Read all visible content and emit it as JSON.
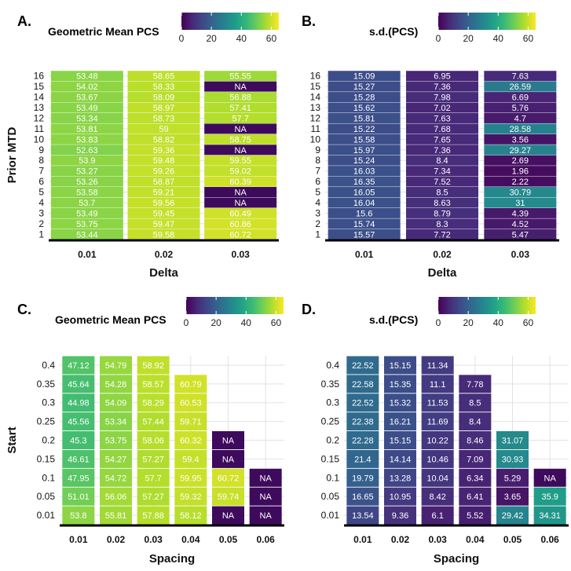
{
  "colorscale": {
    "min": 0,
    "max": 65,
    "stops": [
      "#440154",
      "#482878",
      "#3e4a89",
      "#31688e",
      "#26828e",
      "#1f9e89",
      "#35b779",
      "#6dcd59",
      "#b4de2c",
      "#fde725"
    ],
    "na_color": "#3d0a5c",
    "ticks": [
      "0",
      "20",
      "40",
      "60"
    ]
  },
  "chart_data": [
    {
      "panel": "A.",
      "type": "heatmap",
      "legend_title": "Geometric Mean PCS",
      "xlabel": "Delta",
      "ylabel": "Prior MTD",
      "x_categories": [
        "0.01",
        "0.02",
        "0.03"
      ],
      "y_categories": [
        "1",
        "2",
        "3",
        "4",
        "5",
        "6",
        "7",
        "8",
        "9",
        "10",
        "11",
        "12",
        "13",
        "14",
        "15",
        "16"
      ],
      "labels": [
        [
          "53.44",
          "59.58",
          "60.72"
        ],
        [
          "53.75",
          "59.47",
          "60.86"
        ],
        [
          "53.49",
          "59.45",
          "60.49"
        ],
        [
          "53.7",
          "59.56",
          "NA"
        ],
        [
          "53.58",
          "59.21",
          "NA"
        ],
        [
          "53.26",
          "58.87",
          "60.39"
        ],
        [
          "53.27",
          "59.26",
          "59.02"
        ],
        [
          "53.9",
          "59.48",
          "59.55"
        ],
        [
          "52.63",
          "59.36",
          "NA"
        ],
        [
          "53.83",
          "58.82",
          "58.75"
        ],
        [
          "53.81",
          "59",
          "NA"
        ],
        [
          "53.34",
          "58.73",
          "57.7"
        ],
        [
          "53.49",
          "58.97",
          "57.41"
        ],
        [
          "53.67",
          "58.09",
          "56.88"
        ],
        [
          "54.02",
          "58.33",
          "NA"
        ],
        [
          "53.48",
          "58.65",
          "55.55"
        ]
      ]
    },
    {
      "panel": "B.",
      "type": "heatmap",
      "legend_title": "s.d.(PCS)",
      "xlabel": "Delta",
      "ylabel": "",
      "x_categories": [
        "0.01",
        "0.02",
        "0.03"
      ],
      "y_categories": [
        "1",
        "2",
        "3",
        "4",
        "5",
        "6",
        "7",
        "8",
        "9",
        "10",
        "11",
        "12",
        "13",
        "14",
        "15",
        "16"
      ],
      "labels": [
        [
          "15.57",
          "7.72",
          "5.47"
        ],
        [
          "15.74",
          "8.3",
          "4.52"
        ],
        [
          "15.6",
          "8.79",
          "4.39"
        ],
        [
          "16.04",
          "8.63",
          "31"
        ],
        [
          "16.05",
          "8.5",
          "30.79"
        ],
        [
          "16.35",
          "7.52",
          "2.22"
        ],
        [
          "16.03",
          "7.34",
          "1.96"
        ],
        [
          "15.24",
          "8.4",
          "2.69"
        ],
        [
          "15.97",
          "7.36",
          "29.27"
        ],
        [
          "15.58",
          "7.65",
          "3.56"
        ],
        [
          "15.22",
          "7.68",
          "28.58"
        ],
        [
          "15.81",
          "7.63",
          "4.7"
        ],
        [
          "15.62",
          "7.02",
          "5.76"
        ],
        [
          "15.28",
          "7.98",
          "6.69"
        ],
        [
          "15.27",
          "7.36",
          "26.59"
        ],
        [
          "15.09",
          "6.95",
          "7.63"
        ]
      ]
    },
    {
      "panel": "C.",
      "type": "heatmap",
      "legend_title": "Geometric Mean PCS",
      "xlabel": "Spacing",
      "ylabel": "Start",
      "x_categories": [
        "0.01",
        "0.02",
        "0.03",
        "0.04",
        "0.05",
        "0.06"
      ],
      "y_categories": [
        "0.01",
        "0.05",
        "0.1",
        "0.15",
        "0.2",
        "0.25",
        "0.3",
        "0.35",
        "0.4"
      ],
      "labels": [
        [
          "53.8",
          "55.81",
          "57.88",
          "58.12",
          "NA",
          "NA"
        ],
        [
          "51.01",
          "56.06",
          "57.27",
          "59.32",
          "59.74",
          "NA"
        ],
        [
          "47.95",
          "54.72",
          "57.7",
          "59.95",
          "60.72",
          "NA"
        ],
        [
          "46.61",
          "54.27",
          "57.27",
          "59.4",
          "NA",
          ""
        ],
        [
          "45.3",
          "53.75",
          "58.06",
          "60.32",
          "NA",
          ""
        ],
        [
          "45.56",
          "53.34",
          "57.44",
          "59.71",
          "",
          ""
        ],
        [
          "44.98",
          "54.09",
          "58.29",
          "60.53",
          "",
          ""
        ],
        [
          "45.64",
          "54.28",
          "58.57",
          "60.79",
          "",
          ""
        ],
        [
          "47.12",
          "54.79",
          "58.92",
          "",
          "",
          ""
        ]
      ]
    },
    {
      "panel": "D.",
      "type": "heatmap",
      "legend_title": "s.d.(PCS)",
      "xlabel": "Spacing",
      "ylabel": "",
      "x_categories": [
        "0.01",
        "0.02",
        "0.03",
        "0.04",
        "0.05",
        "0.06"
      ],
      "y_categories": [
        "0.01",
        "0.05",
        "0.1",
        "0.15",
        "0.2",
        "0.25",
        "0.3",
        "0.35",
        "0.4"
      ],
      "labels": [
        [
          "13.54",
          "9.36",
          "6.1",
          "5.52",
          "29.42",
          "34.31"
        ],
        [
          "16.65",
          "10.95",
          "8.42",
          "6.41",
          "3.65",
          "35.9"
        ],
        [
          "19.79",
          "13.28",
          "10.04",
          "6.34",
          "5.29",
          "NA"
        ],
        [
          "21.4",
          "14.14",
          "10.46",
          "7.09",
          "30.93",
          ""
        ],
        [
          "22.28",
          "15.15",
          "10.22",
          "8.46",
          "31.07",
          ""
        ],
        [
          "22.38",
          "16.21",
          "11.69",
          "8.4",
          "",
          ""
        ],
        [
          "22.52",
          "15.32",
          "11.53",
          "8.5",
          "",
          ""
        ],
        [
          "22.58",
          "15.35",
          "11.1",
          "7.78",
          "",
          ""
        ],
        [
          "22.52",
          "15.15",
          "11.34",
          "",
          "",
          ""
        ]
      ]
    }
  ]
}
